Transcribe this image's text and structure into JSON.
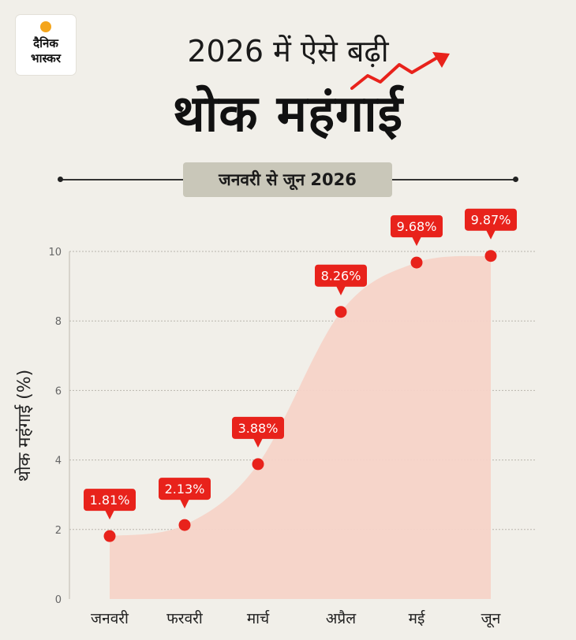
{
  "logo": {
    "line1": "दैनिक",
    "line2": "भास्कर"
  },
  "header": {
    "title_line1": "2026 में ऐसे बढ़ी",
    "title_line2": "थोक महंगाई",
    "subtitle": "जनवरी से जून 2026"
  },
  "colors": {
    "accent_red": "#e8221b",
    "area_fill": "#f6d3c8",
    "background": "#f1efe9"
  },
  "chart_data": {
    "type": "area",
    "categories": [
      "जनवरी",
      "फरवरी",
      "मार्च",
      "अप्रैल",
      "मई",
      "जून"
    ],
    "values": [
      1.81,
      2.13,
      3.88,
      8.26,
      9.68,
      9.87
    ],
    "data_labels": [
      "1.81%",
      "2.13%",
      "3.88%",
      "8.26%",
      "9.68%",
      "9.87%"
    ],
    "ylabel": "थोक महंगाई (%)",
    "yticks": [
      0,
      2,
      4,
      6,
      8,
      10
    ],
    "ylim": [
      0,
      10
    ],
    "grid": true
  }
}
